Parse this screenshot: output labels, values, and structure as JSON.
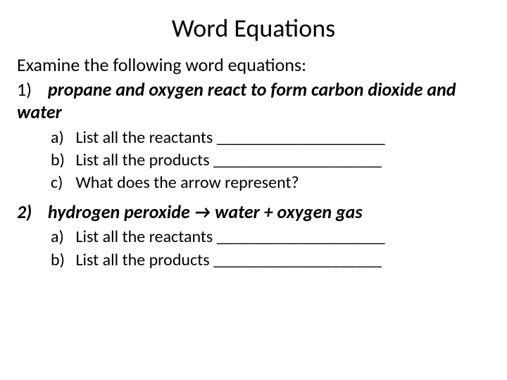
{
  "title": "Word Equations",
  "intro": "Examine the following word equations:",
  "q1": {
    "num": "1)",
    "text": "propane and oxygen react to form carbon dioxide and water",
    "a_letter": "a)",
    "a_text": "List all the reactants ____________________",
    "b_letter": "b)",
    "b_text": "List all the products ____________________",
    "c_letter": "c)",
    "c_text": "What does the arrow represent?"
  },
  "q2": {
    "num": "2)",
    "text": "hydrogen peroxide → water + oxygen gas",
    "a_letter": "a)",
    "a_text": "List all the reactants ____________________",
    "b_letter": "b)",
    "b_text": "List all the products ____________________"
  }
}
